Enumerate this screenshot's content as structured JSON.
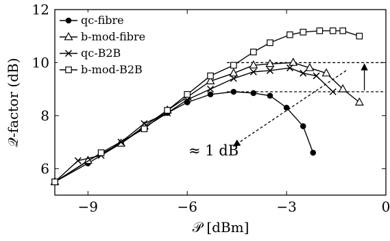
{
  "chart_data": {
    "type": "line",
    "xlabel": "𝒫 [dBm]",
    "ylabel": "𝒬-factor (dB)",
    "xlim": [
      -10,
      0
    ],
    "ylim": [
      5,
      12
    ],
    "xticks": [
      -9,
      -6,
      -3,
      0
    ],
    "yticks": [
      6,
      8,
      10,
      12
    ],
    "xtick_labels": [
      "−9",
      "−6",
      "−3",
      "0"
    ],
    "ytick_labels": [
      "6",
      "8",
      "10",
      "12"
    ],
    "grid": false,
    "legend_position": "top-left",
    "series": [
      {
        "name": "qc-fibre",
        "marker": "filled-circle",
        "x": [
          -10,
          -9,
          -8,
          -7.3,
          -6.6,
          -6,
          -5.3,
          -4.6,
          -4,
          -3.5,
          -3,
          -2.5,
          -2.2
        ],
        "y": [
          5.5,
          6.2,
          6.95,
          7.55,
          8.1,
          8.5,
          8.8,
          8.9,
          8.85,
          8.75,
          8.3,
          7.6,
          6.6
        ]
      },
      {
        "name": "b-mod-fibre",
        "marker": "open-triangle",
        "x": [
          -10,
          -9,
          -8,
          -7.3,
          -6.6,
          -6,
          -5.3,
          -4.6,
          -4,
          -3.5,
          -2.8,
          -2.3,
          -1.8,
          -1.3,
          -0.8
        ],
        "y": [
          5.5,
          6.3,
          6.95,
          7.6,
          8.2,
          8.7,
          9.3,
          9.6,
          9.9,
          9.95,
          10.0,
          9.8,
          9.6,
          9.0,
          8.5
        ]
      },
      {
        "name": "qc-B2B",
        "marker": "cross",
        "x": [
          -10,
          -9.3,
          -8.6,
          -8,
          -7.3,
          -6.6,
          -6,
          -5.3,
          -4.6,
          -4,
          -3.5,
          -2.9,
          -2.5,
          -2.1,
          -1.6
        ],
        "y": [
          5.5,
          6.3,
          6.5,
          7.0,
          7.7,
          8.1,
          8.6,
          9.0,
          9.4,
          9.65,
          9.7,
          9.8,
          9.6,
          9.5,
          8.9
        ]
      },
      {
        "name": "b-mod-B2B",
        "marker": "open-square",
        "x": [
          -10,
          -8.6,
          -7.3,
          -6.6,
          -6,
          -5.3,
          -4.6,
          -4,
          -3.5,
          -2.9,
          -2.5,
          -2,
          -1.6,
          -1.3,
          -0.8
        ],
        "y": [
          5.5,
          6.6,
          7.5,
          8.2,
          8.8,
          9.5,
          9.9,
          10.4,
          10.75,
          11.05,
          11.15,
          11.2,
          11.2,
          11.2,
          11.0
        ]
      }
    ],
    "annotation": {
      "text": "≈ 1 dB",
      "dashed_levels": [
        10.0,
        8.9
      ],
      "dashed_x_range": [
        -4.8,
        0
      ],
      "diagonal_arrow": {
        "from": [
          -1.2,
          9.7
        ],
        "to": [
          -4.6,
          6.85
        ]
      },
      "gap_arrow_x": -0.65
    }
  }
}
